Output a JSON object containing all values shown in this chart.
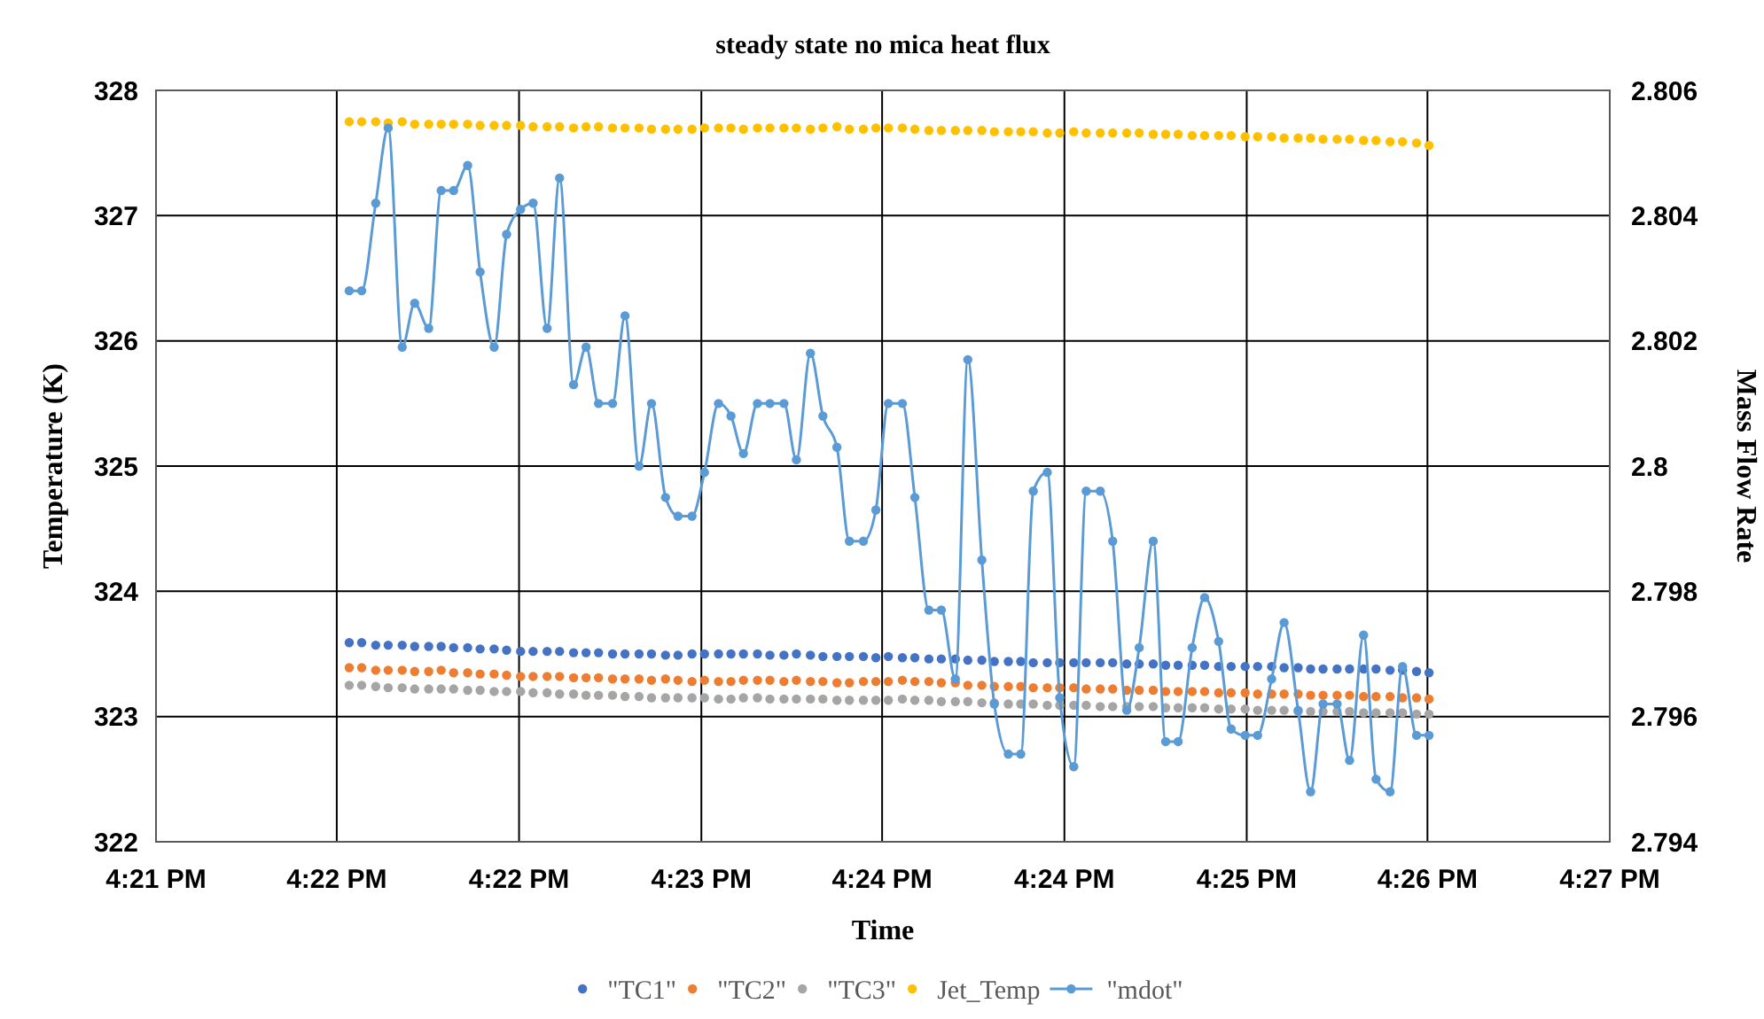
{
  "chart_data": {
    "type": "scatter",
    "title": "steady state no mica heat flux",
    "xlabel": "Time",
    "ylabel": "Temperature (K)",
    "y2label": "Mass Flow Rate",
    "xlim": [
      16.3492,
      16.4425
    ],
    "xticks": [
      {
        "value": 16.3492,
        "label": "4:21 PM"
      },
      {
        "value": 16.3608,
        "label": "4:22 PM"
      },
      {
        "value": 16.3725,
        "label": "4:22 PM"
      },
      {
        "value": 16.3842,
        "label": "4:23 PM"
      },
      {
        "value": 16.3958,
        "label": "4:24 PM"
      },
      {
        "value": 16.4075,
        "label": "4:24 PM"
      },
      {
        "value": 16.4192,
        "label": "4:25 PM"
      },
      {
        "value": 16.4308,
        "label": "4:26 PM"
      },
      {
        "value": 16.4425,
        "label": "4:27 PM"
      }
    ],
    "ylim": [
      322,
      328
    ],
    "yticks": [
      322,
      323,
      324,
      325,
      326,
      327,
      328
    ],
    "y2lim": [
      2.794,
      2.806
    ],
    "y2ticks": [
      2.794,
      2.796,
      2.798,
      {
        "value": 2.8,
        "label": "2.8"
      },
      2.802,
      2.804,
      2.806
    ],
    "grid": true,
    "legend": "bottom",
    "marker": "circle",
    "x": [
      16.3616,
      16.3624,
      16.3633,
      16.3641,
      16.365,
      16.3658,
      16.3667,
      16.3675,
      16.3683,
      16.3692,
      16.37,
      16.3709,
      16.3717,
      16.3726,
      16.3734,
      16.3743,
      16.3751,
      16.376,
      16.3768,
      16.3776,
      16.3785,
      16.3793,
      16.3802,
      16.381,
      16.3819,
      16.3827,
      16.3836,
      16.3844,
      16.3853,
      16.3861,
      16.3869,
      16.3878,
      16.3886,
      16.3895,
      16.3903,
      16.3912,
      16.392,
      16.3929,
      16.3937,
      16.3946,
      16.3954,
      16.3962,
      16.3971,
      16.3979,
      16.3988,
      16.3996,
      16.4005,
      16.4013,
      16.4022,
      16.403,
      16.4039,
      16.4047,
      16.4055,
      16.4064,
      16.4072,
      16.4081,
      16.4089,
      16.4098,
      16.4106,
      16.4115,
      16.4123,
      16.4132,
      16.414,
      16.4148,
      16.4157,
      16.4165,
      16.4174,
      16.4182,
      16.4191,
      16.4199,
      16.4208,
      16.4216,
      16.4225,
      16.4233,
      16.4241,
      16.425,
      16.4258,
      16.4267,
      16.4275,
      16.4284,
      16.4292,
      16.4301,
      16.4309
    ],
    "series": [
      {
        "name": "\"TC1\"",
        "color": "#4472c4",
        "values": [
          323.59,
          323.59,
          323.57,
          323.57,
          323.57,
          323.56,
          323.56,
          323.56,
          323.55,
          323.55,
          323.54,
          323.54,
          323.53,
          323.52,
          323.52,
          323.52,
          323.52,
          323.51,
          323.51,
          323.51,
          323.5,
          323.5,
          323.5,
          323.5,
          323.49,
          323.49,
          323.5,
          323.5,
          323.5,
          323.5,
          323.5,
          323.5,
          323.49,
          323.49,
          323.5,
          323.49,
          323.48,
          323.48,
          323.48,
          323.48,
          323.47,
          323.48,
          323.47,
          323.47,
          323.46,
          323.46,
          323.46,
          323.45,
          323.45,
          323.44,
          323.44,
          323.44,
          323.43,
          323.43,
          323.43,
          323.43,
          323.43,
          323.43,
          323.43,
          323.42,
          323.42,
          323.42,
          323.41,
          323.41,
          323.41,
          323.41,
          323.4,
          323.4,
          323.4,
          323.4,
          323.4,
          323.39,
          323.39,
          323.38,
          323.38,
          323.38,
          323.38,
          323.38,
          323.38,
          323.37,
          323.37,
          323.36,
          323.35
        ]
      },
      {
        "name": "\"TC2\"",
        "color": "#ed7d31",
        "values": [
          323.39,
          323.39,
          323.37,
          323.37,
          323.37,
          323.36,
          323.36,
          323.37,
          323.35,
          323.35,
          323.34,
          323.34,
          323.33,
          323.32,
          323.32,
          323.32,
          323.32,
          323.31,
          323.31,
          323.31,
          323.3,
          323.3,
          323.3,
          323.29,
          323.3,
          323.29,
          323.28,
          323.29,
          323.28,
          323.28,
          323.29,
          323.29,
          323.29,
          323.28,
          323.29,
          323.28,
          323.28,
          323.27,
          323.27,
          323.28,
          323.28,
          323.28,
          323.29,
          323.28,
          323.28,
          323.27,
          323.27,
          323.25,
          323.25,
          323.24,
          323.24,
          323.24,
          323.23,
          323.23,
          323.23,
          323.23,
          323.22,
          323.22,
          323.22,
          323.21,
          323.21,
          323.21,
          323.2,
          323.2,
          323.2,
          323.2,
          323.19,
          323.19,
          323.19,
          323.18,
          323.18,
          323.18,
          323.18,
          323.17,
          323.17,
          323.17,
          323.17,
          323.16,
          323.16,
          323.16,
          323.15,
          323.15,
          323.14
        ]
      },
      {
        "name": "\"TC3\"",
        "color": "#a5a5a5",
        "values": [
          323.25,
          323.25,
          323.24,
          323.23,
          323.23,
          323.22,
          323.22,
          323.22,
          323.22,
          323.21,
          323.21,
          323.2,
          323.2,
          323.2,
          323.19,
          323.19,
          323.18,
          323.18,
          323.17,
          323.17,
          323.17,
          323.16,
          323.16,
          323.15,
          323.15,
          323.15,
          323.15,
          323.15,
          323.14,
          323.14,
          323.15,
          323.15,
          323.14,
          323.14,
          323.14,
          323.14,
          323.14,
          323.13,
          323.13,
          323.13,
          323.13,
          323.13,
          323.14,
          323.13,
          323.13,
          323.12,
          323.12,
          323.12,
          323.11,
          323.11,
          323.1,
          323.1,
          323.1,
          323.09,
          323.09,
          323.09,
          323.09,
          323.08,
          323.08,
          323.08,
          323.08,
          323.08,
          323.07,
          323.07,
          323.07,
          323.07,
          323.06,
          323.06,
          323.06,
          323.05,
          323.05,
          323.05,
          323.04,
          323.04,
          323.04,
          323.04,
          323.04,
          323.03,
          323.03,
          323.03,
          323.03,
          323.02,
          323.02
        ]
      },
      {
        "name": "Jet_Temp",
        "color": "#ffc000",
        "values": [
          327.75,
          327.75,
          327.75,
          327.74,
          327.75,
          327.73,
          327.73,
          327.73,
          327.73,
          327.73,
          327.72,
          327.72,
          327.72,
          327.72,
          327.71,
          327.71,
          327.71,
          327.7,
          327.71,
          327.71,
          327.7,
          327.7,
          327.7,
          327.69,
          327.69,
          327.69,
          327.69,
          327.7,
          327.7,
          327.7,
          327.69,
          327.7,
          327.7,
          327.7,
          327.7,
          327.69,
          327.7,
          327.71,
          327.69,
          327.69,
          327.7,
          327.7,
          327.7,
          327.69,
          327.68,
          327.68,
          327.68,
          327.68,
          327.68,
          327.67,
          327.67,
          327.67,
          327.67,
          327.66,
          327.66,
          327.67,
          327.66,
          327.66,
          327.66,
          327.66,
          327.66,
          327.65,
          327.65,
          327.65,
          327.64,
          327.64,
          327.64,
          327.64,
          327.63,
          327.63,
          327.63,
          327.62,
          327.62,
          327.62,
          327.61,
          327.61,
          327.61,
          327.6,
          327.6,
          327.59,
          327.59,
          327.58,
          327.56
        ]
      },
      {
        "name": "\"mdot\"",
        "type": "line",
        "axis": "y2",
        "color": "#5b9bd5",
        "values": [
          2.8028,
          2.8028,
          2.8042,
          2.8054,
          2.8019,
          2.8026,
          2.8022,
          2.8044,
          2.8044,
          2.8048,
          2.8031,
          2.8019,
          2.8037,
          2.8041,
          2.8042,
          2.8022,
          2.8046,
          2.8013,
          2.8019,
          2.801,
          2.801,
          2.8024,
          2.8,
          2.801,
          2.7995,
          2.7992,
          2.7992,
          2.7999,
          2.801,
          2.8008,
          2.8002,
          2.801,
          2.801,
          2.801,
          2.8001,
          2.8018,
          2.8008,
          2.8003,
          2.7988,
          2.7988,
          2.7993,
          2.801,
          2.801,
          2.7995,
          2.7977,
          2.7977,
          2.7966,
          2.8017,
          2.7985,
          2.7962,
          2.7954,
          2.7954,
          2.7996,
          2.7999,
          2.7963,
          2.7952,
          2.7996,
          2.7996,
          2.7988,
          2.7961,
          2.7971,
          2.7988,
          2.7956,
          2.7956,
          2.7971,
          2.7979,
          2.7972,
          2.7958,
          2.7957,
          2.7957,
          2.7966,
          2.7975,
          2.7961,
          2.7948,
          2.7962,
          2.7962,
          2.7953,
          2.7973,
          2.795,
          2.7948,
          2.7968,
          2.7957,
          2.7957
        ]
      }
    ]
  }
}
